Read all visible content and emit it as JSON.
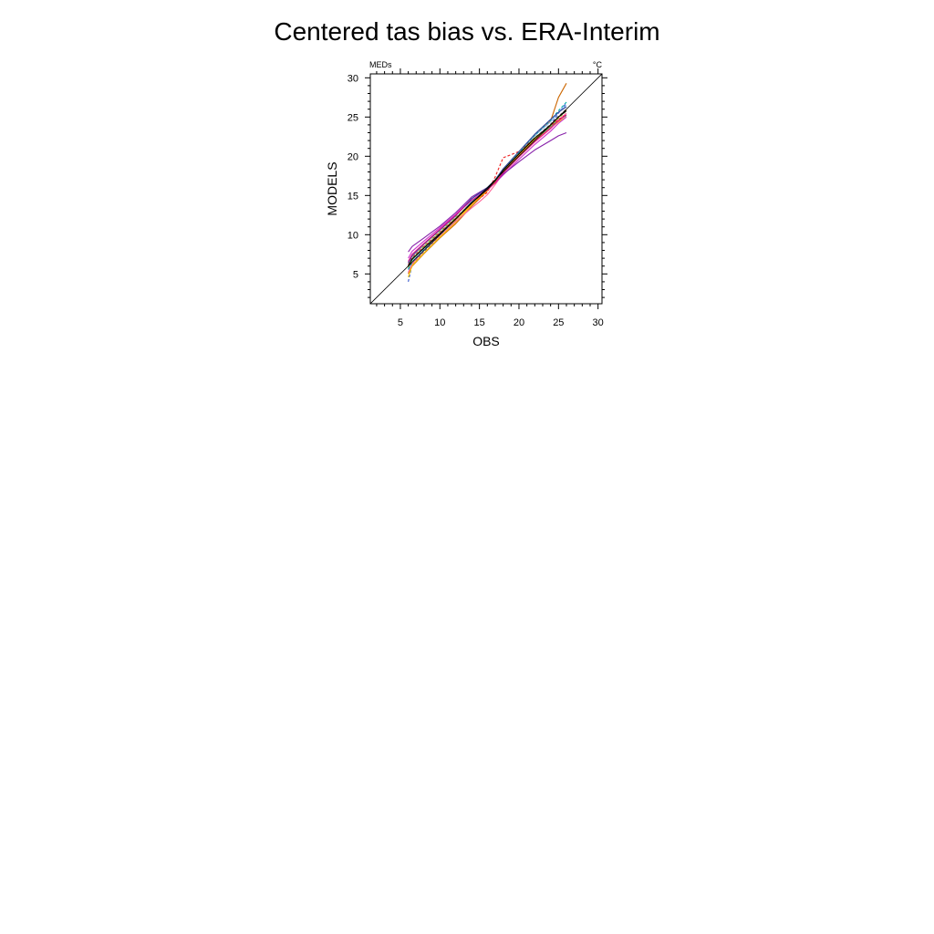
{
  "chart_data": {
    "type": "line",
    "title": "Centered tas bias vs. ERA-Interim",
    "xlabel": "OBS",
    "ylabel": "MODELS",
    "left_string": "MEDs",
    "right_string": "°C",
    "xlim": [
      1.2,
      30.5
    ],
    "ylim": [
      1.2,
      30.5
    ],
    "x_ticks": [
      5,
      10,
      15,
      20,
      25,
      30
    ],
    "y_ticks": [
      5,
      10,
      15,
      20,
      25,
      30
    ],
    "grid": false,
    "legend": "none",
    "reference_line": {
      "label": "",
      "slope": 1,
      "color": "#000000"
    },
    "x": [
      6,
      6.5,
      8,
      10,
      12,
      14,
      15,
      16,
      17,
      18,
      20,
      22,
      24,
      25,
      26
    ],
    "series": [
      {
        "color": "#cc6600",
        "values": [
          5.0,
          6.0,
          7.6,
          9.6,
          11.4,
          13.6,
          14.6,
          15.6,
          16.8,
          18.0,
          20.0,
          22.6,
          24.5,
          27.5,
          29.3
        ]
      },
      {
        "color": "#3355cc",
        "values": [
          4.0,
          6.2,
          7.8,
          9.8,
          11.8,
          14.2,
          15.0,
          15.9,
          16.8,
          18.0,
          20.2,
          22.2,
          24.0,
          25.5,
          26.8
        ]
      },
      {
        "color": "#88bbee",
        "values": [
          5.5,
          6.6,
          8.2,
          10.1,
          12.0,
          14.3,
          15.1,
          16.0,
          16.9,
          18.1,
          20.4,
          22.6,
          24.4,
          25.6,
          26.5
        ]
      },
      {
        "color": "#33aa55",
        "values": [
          5.8,
          6.8,
          8.4,
          10.2,
          12.1,
          14.0,
          14.9,
          15.8,
          16.9,
          18.2,
          20.3,
          22.1,
          23.8,
          24.6,
          25.2
        ]
      },
      {
        "color": "#99cc33",
        "values": [
          6.0,
          7.0,
          8.6,
          10.4,
          12.2,
          14.1,
          15.0,
          15.9,
          17.0,
          18.3,
          20.4,
          22.4,
          23.9,
          24.8,
          25.8
        ]
      },
      {
        "color": "#ffcc00",
        "values": [
          4.6,
          6.1,
          7.7,
          9.7,
          11.6,
          13.8,
          14.8,
          15.7,
          16.9,
          18.2,
          20.1,
          22.0,
          23.6,
          24.4,
          25.0
        ]
      },
      {
        "color": "#ff6699",
        "values": [
          5.2,
          6.3,
          8.0,
          9.9,
          11.7,
          13.4,
          14.2,
          15.1,
          16.4,
          17.8,
          19.9,
          21.8,
          23.5,
          24.6,
          25.5
        ]
      },
      {
        "color": "#ee2222",
        "values": [
          6.2,
          7.1,
          8.5,
          10.3,
          12.1,
          14.0,
          14.6,
          15.4,
          17.4,
          19.8,
          20.6,
          22.3,
          23.9,
          24.7,
          25.3
        ]
      },
      {
        "color": "#cc33cc",
        "values": [
          7.0,
          7.9,
          9.2,
          10.9,
          12.6,
          14.6,
          15.2,
          15.9,
          16.6,
          17.6,
          19.6,
          21.5,
          23.2,
          24.2,
          25.0
        ]
      },
      {
        "color": "#8822aa",
        "values": [
          7.8,
          8.5,
          9.6,
          11.1,
          12.8,
          14.8,
          15.4,
          16.0,
          16.7,
          17.7,
          19.3,
          20.8,
          22.0,
          22.6,
          23.0
        ]
      },
      {
        "color": "#00aaaa",
        "values": [
          5.6,
          6.5,
          8.1,
          10.0,
          11.9,
          14.1,
          15.0,
          15.8,
          16.9,
          18.3,
          20.5,
          22.7,
          24.6,
          25.8,
          26.9
        ]
      },
      {
        "color": "#334499",
        "values": [
          6.4,
          7.3,
          8.8,
          10.6,
          12.4,
          14.6,
          15.3,
          16.0,
          17.0,
          18.4,
          20.6,
          22.8,
          24.7,
          25.6,
          26.3
        ]
      },
      {
        "color": "#ff9900",
        "values": [
          5.9,
          6.9,
          8.3,
          10.1,
          11.9,
          13.9,
          14.7,
          15.6,
          16.8,
          18.1,
          20.2,
          22.2,
          24.0,
          25.0,
          25.9
        ]
      },
      {
        "color": "#777777",
        "values": [
          6.1,
          7.0,
          8.4,
          10.2,
          12.0,
          14.0,
          14.9,
          15.8,
          16.9,
          18.2,
          20.3,
          22.3,
          24.1,
          25.1,
          26.0
        ]
      },
      {
        "color": "#dd1188",
        "values": [
          6.6,
          7.5,
          8.9,
          10.7,
          12.5,
          14.4,
          15.0,
          15.7,
          16.6,
          17.9,
          20.0,
          21.9,
          23.6,
          24.5,
          25.3
        ]
      },
      {
        "color": "#000000",
        "values": [
          6.0,
          6.9,
          8.3,
          10.1,
          12.0,
          14.1,
          14.9,
          15.8,
          16.9,
          18.2,
          20.3,
          22.3,
          24.0,
          25.0,
          25.8
        ]
      }
    ]
  }
}
